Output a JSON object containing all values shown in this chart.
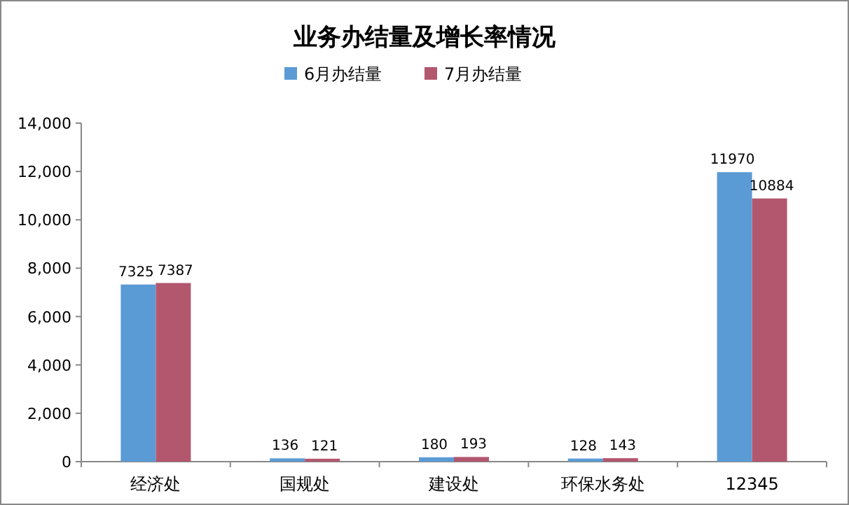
{
  "chart_data": {
    "type": "bar",
    "title": "业务办结量及增长率情况",
    "categories": [
      "经济处",
      "国规处",
      "建设处",
      "环保水务处",
      "12345"
    ],
    "series": [
      {
        "name": "6月办结量",
        "color": "#5b9bd5",
        "values": [
          7325,
          136,
          180,
          128,
          11970
        ]
      },
      {
        "name": "7月办结量",
        "color": "#b3576f",
        "values": [
          7387,
          121,
          193,
          143,
          10884
        ]
      }
    ],
    "ylim": [
      0,
      14000
    ],
    "yticks": [
      0,
      {
        "value": 2000,
        "label": "2,000"
      },
      {
        "value": 4000,
        "label": "4,000"
      },
      {
        "value": 6000,
        "label": "6,000"
      },
      {
        "value": 8000,
        "label": "8,000"
      },
      {
        "value": 10000,
        "label": "10,000"
      },
      {
        "value": 12000,
        "label": "12,000"
      },
      {
        "value": 14000,
        "label": "14,000"
      }
    ],
    "data_labels": true,
    "legend": "top"
  }
}
